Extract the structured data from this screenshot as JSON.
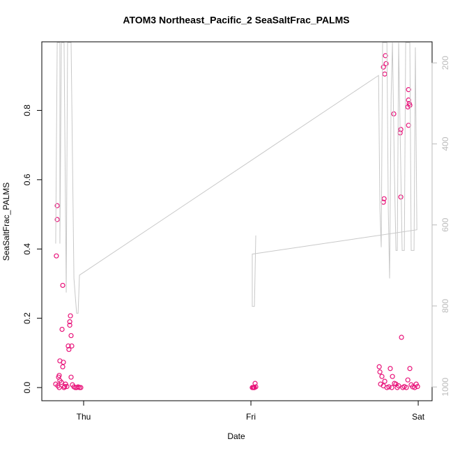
{
  "chart_data": {
    "type": "scatter",
    "title": "ATOM3 Northeast_Pacific_2 SeaSaltFrac_PALMS",
    "xlabel": "Date",
    "ylabel": "SeaSaltFrac_PALMS",
    "xlim": [
      -0.25,
      2.083
    ],
    "ylim": [
      -0.038,
      0.998
    ],
    "y2lim": [
      1034,
      148
    ],
    "xticks": [
      {
        "value": 0,
        "label": "Thu"
      },
      {
        "value": 1,
        "label": "Fri"
      },
      {
        "value": 2,
        "label": "Sat"
      }
    ],
    "yticks": [
      {
        "value": 0,
        "label": "0.0"
      },
      0.2,
      0.4,
      0.6,
      0.8
    ],
    "y2ticks": [
      200,
      400,
      600,
      800,
      1000
    ],
    "series": [
      {
        "type": "scatter",
        "color": "#e8147a",
        "x": [
          -0.158,
          -0.158,
          -0.163,
          -0.125,
          -0.129,
          -0.142,
          -0.121,
          -0.125,
          -0.146,
          -0.15,
          -0.092,
          -0.088,
          -0.083,
          -0.083,
          -0.079,
          -0.075,
          -0.071,
          -0.075,
          -0.167,
          -0.154,
          -0.146,
          -0.133,
          -0.117,
          -0.108,
          -0.1,
          -0.067,
          -0.058,
          -0.05,
          -0.042,
          -0.033,
          -0.025,
          -0.017,
          -0.142,
          -0.113,
          1.008,
          1.013,
          1.017,
          1.021,
          1.025,
          1.029,
          1.792,
          1.804,
          1.8,
          1.808,
          1.796,
          1.792,
          1.854,
          1.892,
          1.896,
          1.896,
          1.942,
          1.942,
          1.946,
          1.95,
          1.938,
          1.942,
          1.9,
          1.767,
          1.783,
          1.833,
          1.846,
          1.938,
          1.95,
          1.775,
          1.792,
          1.8,
          1.813,
          1.825,
          1.842,
          1.858,
          1.875,
          1.883,
          1.908,
          1.917,
          1.929,
          1.958,
          1.967,
          1.979,
          1.988,
          1.996,
          1.771,
          1.867
        ],
        "values": [
          0.525,
          0.485,
          0.38,
          0.295,
          0.168,
          0.077,
          0.073,
          0.06,
          0.035,
          0.03,
          0.12,
          0.11,
          0.19,
          0.18,
          0.207,
          0.15,
          0.12,
          0.03,
          0.01,
          0.005,
          0,
          0.015,
          0,
          0.01,
          0.003,
          0.008,
          0.002,
          0,
          0,
          0.002,
          0,
          0,
          0.02,
          0.003,
          0,
          0,
          0,
          0,
          0.012,
          0.002,
          0.925,
          0.958,
          0.905,
          0.935,
          0.545,
          0.535,
          0.79,
          0.735,
          0.745,
          0.55,
          0.86,
          0.83,
          0.82,
          0.815,
          0.81,
          0.757,
          0.145,
          0.06,
          0.032,
          0.055,
          0.032,
          0.022,
          0.055,
          0.01,
          0.005,
          0.018,
          0,
          0.002,
          0,
          0.012,
          0,
          0.005,
          0,
          0.003,
          0,
          0.008,
          0.002,
          0,
          0.01,
          0.003,
          0.045,
          0.01
        ]
      },
      {
        "type": "line",
        "axis": "y2",
        "color": "#c8c8c8",
        "x": [
          -0.167,
          -0.158,
          -0.142,
          -0.142,
          -0.133,
          -0.117,
          -0.104,
          -0.096,
          -0.075,
          -0.058,
          -0.042,
          -0.033,
          -0.025,
          1.763,
          1.771,
          1.779,
          1.787,
          1.813,
          1.821,
          1.829,
          1.838,
          1.846,
          1.858,
          1.867,
          1.875,
          1.883,
          1.904,
          1.917,
          1.925,
          1.95,
          1.958,
          1.975,
          1.983,
          1.992,
          1.008,
          1.008,
          1.021,
          1.029
        ],
        "values": [
          646,
          150,
          150,
          646,
          150,
          150,
          767,
          150,
          150,
          732,
          818,
          818,
          724,
          231,
          560,
          655,
          150,
          150,
          560,
          732,
          286,
          150,
          475,
          663,
          663,
          150,
          663,
          663,
          150,
          150,
          663,
          663,
          162,
          612,
          672,
          801,
          801,
          626
        ]
      }
    ]
  }
}
